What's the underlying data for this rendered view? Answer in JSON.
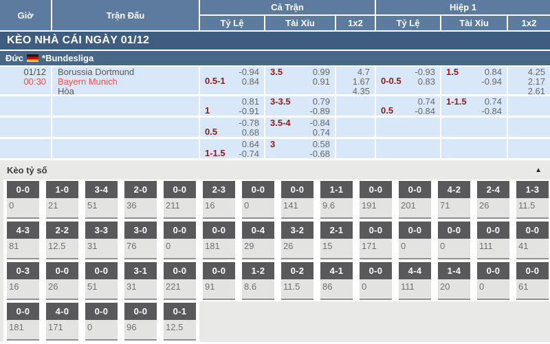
{
  "colors": {
    "header_blue": "#5d7b9e",
    "section_blue": "#3e5d7f",
    "league_blue": "#486888",
    "row_blue": "#d9e8f8",
    "handicap_maroon": "#8e1a15",
    "accent_red": "#f05045",
    "score_box_gray": "#59595b"
  },
  "odds_table": {
    "headers": {
      "time": "Giờ",
      "match": "Trận Đấu",
      "full_match": "Cả Trận",
      "first_half": "Hiệp 1",
      "odds": "Tỷ Lệ",
      "over_under": "Tài Xỉu",
      "one_x_two": "1x2"
    },
    "section_title": "KÈO NHÀ CÁI NGÀY 01/12",
    "league": {
      "country": "Đức",
      "flag_icon": "germany-flag",
      "name": "*Bundesliga"
    },
    "match": {
      "date": "01/12",
      "time": "00:30",
      "home": "Borussia Dortmund",
      "away": "Bayern Munich",
      "draw": "Hòa"
    },
    "rows": [
      {
        "ft_handicap": {
          "line": "0.5-1",
          "top": "-0.94",
          "bottom": "0.84"
        },
        "ft_ou": {
          "line": "3.5",
          "top": "0.99",
          "bottom": "0.91"
        },
        "ft_1x2": [
          "4.7",
          "1.67",
          "4.35"
        ],
        "h1_handicap": {
          "line": "0-0.5",
          "top": "-0.93",
          "bottom": "0.83"
        },
        "h1_ou": {
          "line": "1.5",
          "top": "0.84",
          "bottom": "-0.94"
        },
        "h1_1x2": [
          "4.25",
          "2.17",
          "2.61"
        ]
      },
      {
        "ft_handicap": {
          "line": "1",
          "top": "0.81",
          "bottom": "-0.91"
        },
        "ft_ou": {
          "line": "3-3.5",
          "top": "0.79",
          "bottom": "-0.89"
        },
        "ft_1x2": [],
        "h1_handicap": {
          "line": "0.5",
          "top": "0.74",
          "bottom": "-0.84"
        },
        "h1_ou": {
          "line": "1-1.5",
          "top": "0.74",
          "bottom": "-0.84"
        },
        "h1_1x2": []
      },
      {
        "ft_handicap": {
          "line": "0.5",
          "top": "-0.78",
          "bottom": "0.68"
        },
        "ft_ou": {
          "line": "3.5-4",
          "top": "-0.84",
          "bottom": "0.74"
        },
        "ft_1x2": [],
        "h1_handicap": null,
        "h1_ou": null,
        "h1_1x2": []
      },
      {
        "ft_handicap": {
          "line": "1-1.5",
          "top": "0.64",
          "bottom": "-0.74"
        },
        "ft_ou": {
          "line": "3",
          "top": "0.58",
          "bottom": "-0.68"
        },
        "ft_1x2": [],
        "h1_handicap": null,
        "h1_ou": null,
        "h1_1x2": []
      }
    ]
  },
  "score_section": {
    "title": "Kèo tỷ số",
    "collapse_icon": "▲",
    "rows": [
      [
        {
          "score": "0-0",
          "odds": "0"
        },
        {
          "score": "1-0",
          "odds": "21"
        },
        {
          "score": "3-4",
          "odds": "51"
        },
        {
          "score": "2-0",
          "odds": "36"
        },
        {
          "score": "0-0",
          "odds": "211"
        },
        {
          "score": "2-3",
          "odds": "16"
        },
        {
          "score": "0-0",
          "odds": "0"
        },
        {
          "score": "0-0",
          "odds": "141"
        },
        {
          "score": "1-1",
          "odds": "9.6"
        },
        {
          "score": "0-0",
          "odds": "191"
        },
        {
          "score": "0-0",
          "odds": "201"
        },
        {
          "score": "4-2",
          "odds": "71"
        },
        {
          "score": "2-4",
          "odds": "26"
        },
        {
          "score": "1-3",
          "odds": "11.5"
        }
      ],
      [
        {
          "score": "4-3",
          "odds": "81"
        },
        {
          "score": "2-2",
          "odds": "12.5"
        },
        {
          "score": "3-3",
          "odds": "31"
        },
        {
          "score": "3-0",
          "odds": "76"
        },
        {
          "score": "0-0",
          "odds": "0"
        },
        {
          "score": "0-0",
          "odds": "181"
        },
        {
          "score": "0-4",
          "odds": "29"
        },
        {
          "score": "3-2",
          "odds": "26"
        },
        {
          "score": "2-1",
          "odds": "15"
        },
        {
          "score": "0-0",
          "odds": "171"
        },
        {
          "score": "0-0",
          "odds": "0"
        },
        {
          "score": "0-0",
          "odds": "0"
        },
        {
          "score": "0-0",
          "odds": "111"
        },
        {
          "score": "0-0",
          "odds": "41"
        }
      ],
      [
        {
          "score": "0-3",
          "odds": "16"
        },
        {
          "score": "0-0",
          "odds": "26"
        },
        {
          "score": "0-0",
          "odds": "51"
        },
        {
          "score": "3-1",
          "odds": "31"
        },
        {
          "score": "0-0",
          "odds": "221"
        },
        {
          "score": "0-0",
          "odds": "91"
        },
        {
          "score": "1-2",
          "odds": "8.6"
        },
        {
          "score": "0-2",
          "odds": "11.5"
        },
        {
          "score": "4-1",
          "odds": "86"
        },
        {
          "score": "0-0",
          "odds": "0"
        },
        {
          "score": "4-4",
          "odds": "111"
        },
        {
          "score": "1-4",
          "odds": "20"
        },
        {
          "score": "0-0",
          "odds": "0"
        },
        {
          "score": "0-0",
          "odds": "61"
        }
      ],
      [
        {
          "score": "0-0",
          "odds": "181"
        },
        {
          "score": "4-0",
          "odds": "171"
        },
        {
          "score": "0-0",
          "odds": "0"
        },
        {
          "score": "0-0",
          "odds": "96"
        },
        {
          "score": "0-1",
          "odds": "12.5"
        }
      ]
    ]
  }
}
